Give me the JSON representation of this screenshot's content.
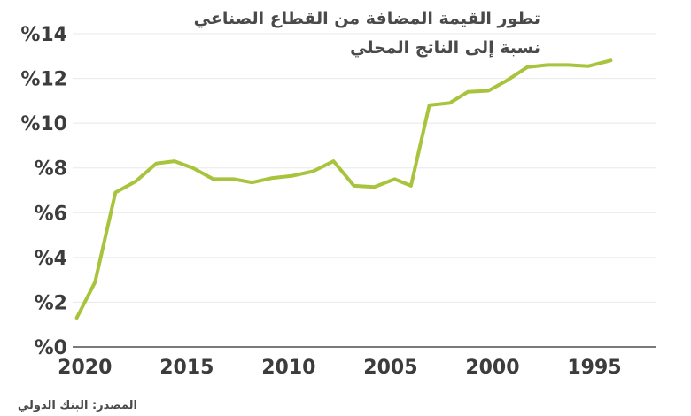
{
  "chart_data": {
    "type": "line",
    "title": "تطور القيمة المضافة من القطاع الصناعي",
    "subtitle": "نسبة إلى الناتج المحلي",
    "source": "المصدر: البنك الدولي",
    "x_reversed": true,
    "xlim": [
      1992,
      2020.6
    ],
    "ylim": [
      0,
      14
    ],
    "x_ticks": [
      2020,
      2015,
      2010,
      2005,
      2000,
      1995
    ],
    "x_tick_labels": [
      "2020",
      "2015",
      "2010",
      "2005",
      "2000",
      "1995"
    ],
    "y_ticks": [
      0,
      2,
      4,
      6,
      8,
      10,
      12,
      14
    ],
    "y_tick_labels": [
      "%0",
      "%2",
      "%4",
      "%6",
      "%8",
      "%10",
      "%12",
      "%14"
    ],
    "grid": true,
    "colors": {
      "line": "#a8c33c",
      "grid": "#e8e8e8",
      "axis": "#7a7a7a"
    },
    "series": [
      {
        "x": [
          2020.4,
          2019.5,
          2018.5,
          2017.5,
          2016.5,
          2015.6,
          2014.7,
          2013.7,
          2012.7,
          2011.8,
          2010.8,
          2009.8,
          2008.8,
          2007.8,
          2006.8,
          2005.8,
          2004.8,
          2004.0,
          2003.1,
          2002.1,
          2001.2,
          2000.2,
          1999.3,
          1998.3,
          1997.3,
          1996.3,
          1995.3,
          1994.2
        ],
        "y": [
          1.3,
          2.9,
          6.9,
          7.4,
          8.2,
          8.3,
          8.0,
          7.5,
          7.5,
          7.35,
          7.55,
          7.65,
          7.85,
          8.3,
          7.2,
          7.15,
          7.5,
          7.2,
          10.8,
          10.9,
          11.4,
          11.45,
          11.9,
          12.5,
          12.6,
          12.6,
          12.55,
          12.8
        ]
      }
    ]
  }
}
